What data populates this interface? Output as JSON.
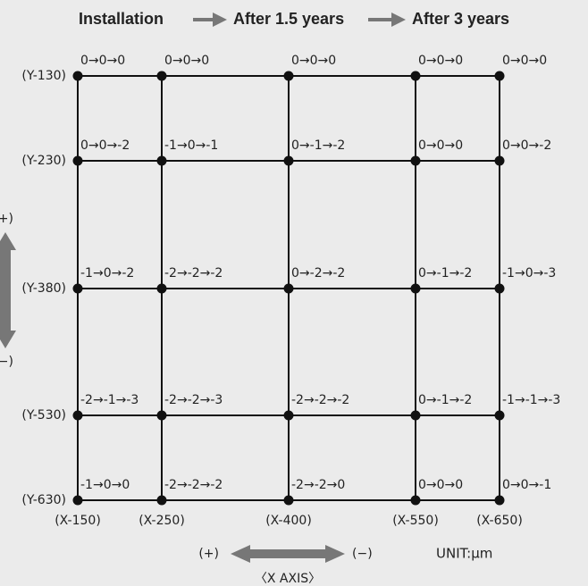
{
  "header": {
    "stages": [
      "Installation",
      "After 1.5 years",
      "After 3 years"
    ]
  },
  "y_labels": [
    "(Y-130)",
    "(Y-230)",
    "(Y-380)",
    "(Y-530)",
    "(Y-630)"
  ],
  "x_labels": [
    "(X-150)",
    "(X-250)",
    "(X-400)",
    "(X-550)",
    "(X-650)"
  ],
  "grid": {
    "rows": [
      [
        "0→0→0",
        "0→0→0",
        "0→0→0",
        "0→0→0",
        "0→0→0"
      ],
      [
        "0→0→-2",
        "-1→0→-1",
        "0→-1→-2",
        "0→0→0",
        "0→0→-2"
      ],
      [
        "-1→0→-2",
        "-2→-2→-2",
        "0→-2→-2",
        "0→-1→-2",
        "-1→0→-3"
      ],
      [
        "-2→-1→-3",
        "-2→-2→-3",
        "-2→-2→-2",
        "0→-1→-2",
        "-1→-1→-3"
      ],
      [
        "-1→0→0",
        "-2→-2→-2",
        "-2→-2→0",
        "0→0→0",
        "0→0→-1"
      ]
    ]
  },
  "y_axis": {
    "plus": "(+)",
    "minus": "(−)"
  },
  "x_axis": {
    "plus": "(+)",
    "minus": "(−)",
    "title": "〈X AXIS〉"
  },
  "unit": "UNIT:μm"
}
